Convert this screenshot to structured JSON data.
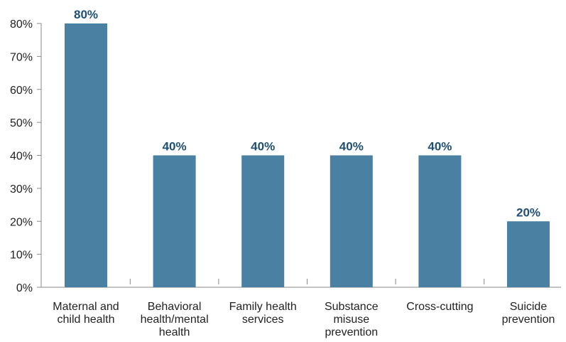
{
  "chart_data": {
    "type": "bar",
    "categories": [
      [
        "Maternal and",
        "child health"
      ],
      [
        "Behavioral",
        "health/mental",
        "health"
      ],
      [
        "Family health",
        "services"
      ],
      [
        "Substance",
        "misuse",
        "prevention"
      ],
      [
        "Cross-cutting"
      ],
      [
        "Suicide",
        "prevention"
      ]
    ],
    "values": [
      80,
      40,
      40,
      40,
      40,
      20
    ],
    "data_labels": [
      "80%",
      "40%",
      "40%",
      "40%",
      "40%",
      "20%"
    ],
    "y_ticks": [
      "0%",
      "10%",
      "20%",
      "30%",
      "40%",
      "50%",
      "60%",
      "70%",
      "80%"
    ],
    "ylim": [
      0,
      80
    ],
    "grid": false,
    "legend": "none",
    "colors": {
      "bar": "#4a80a2",
      "data_label": "#1f4f73",
      "axis": "#888888"
    }
  }
}
